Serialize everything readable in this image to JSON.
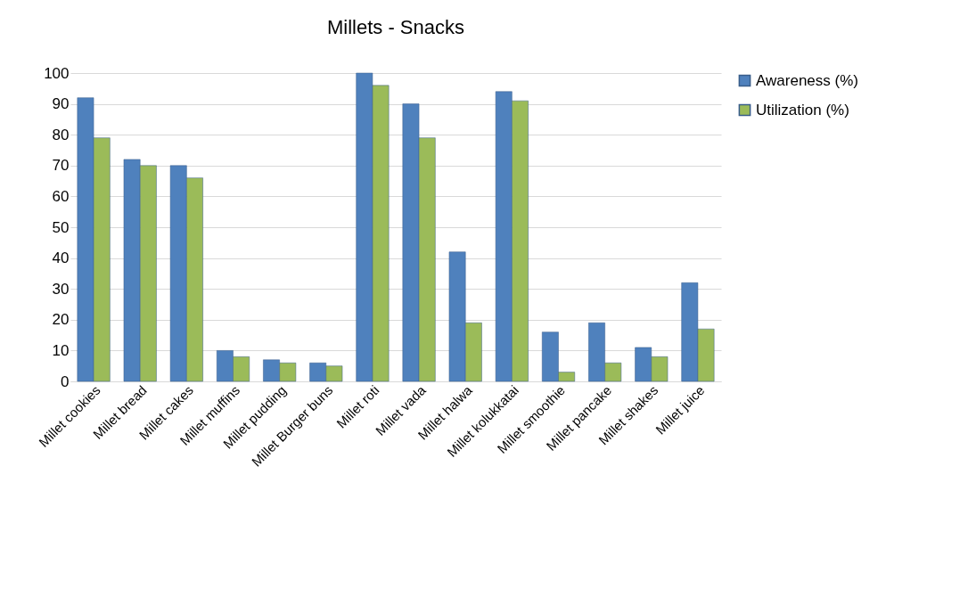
{
  "chart_data": {
    "type": "bar",
    "title": "Millets - Snacks",
    "categories": [
      "Millet cookies",
      "Millet bread",
      "Millet cakes",
      "Millet muffins",
      "Millet pudding",
      "Millet Burger buns",
      "Millet roti",
      "Millet vada",
      "Millet halwa",
      "Millet kolukkatai",
      "Millet smoothie",
      "Millet pancake",
      "Millet shakes",
      "Millet juice"
    ],
    "series": [
      {
        "name": "Awareness (%)",
        "color": "#4f81bd",
        "values": [
          92,
          72,
          70,
          10,
          7,
          6,
          100,
          90,
          42,
          94,
          16,
          19,
          11,
          32
        ]
      },
      {
        "name": "Utilization (%)",
        "color": "#9bbb59",
        "values": [
          79,
          70,
          66,
          8,
          6,
          5,
          96,
          79,
          19,
          91,
          3,
          6,
          8,
          17
        ]
      }
    ],
    "ylim": [
      0,
      100
    ],
    "yticks": [
      0,
      10,
      20,
      30,
      40,
      50,
      60,
      70,
      80,
      90,
      100
    ],
    "grid": "y",
    "legend": "right"
  }
}
